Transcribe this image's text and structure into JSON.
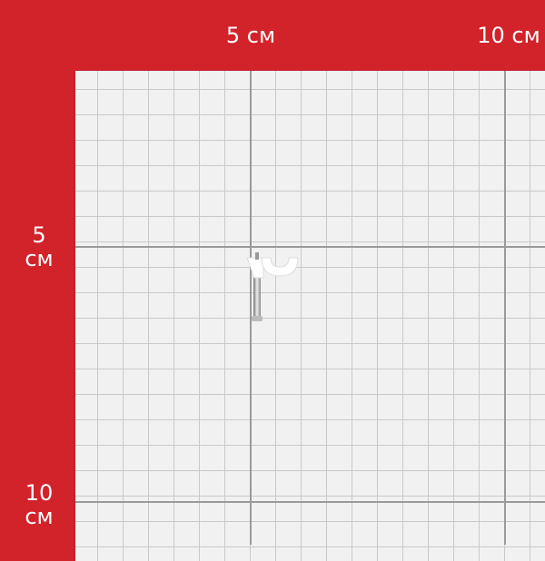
{
  "colors": {
    "background": "#d2232a",
    "grid": "#f1f1f1",
    "major_line": "#9a9a9a"
  },
  "ruler": {
    "top_labels": [
      "5 см",
      "10 см"
    ],
    "left_labels": [
      {
        "number": "5",
        "unit": "см"
      },
      {
        "number": "10",
        "unit": "см"
      }
    ]
  },
  "object": "plastic-cable-clip-with-nail"
}
